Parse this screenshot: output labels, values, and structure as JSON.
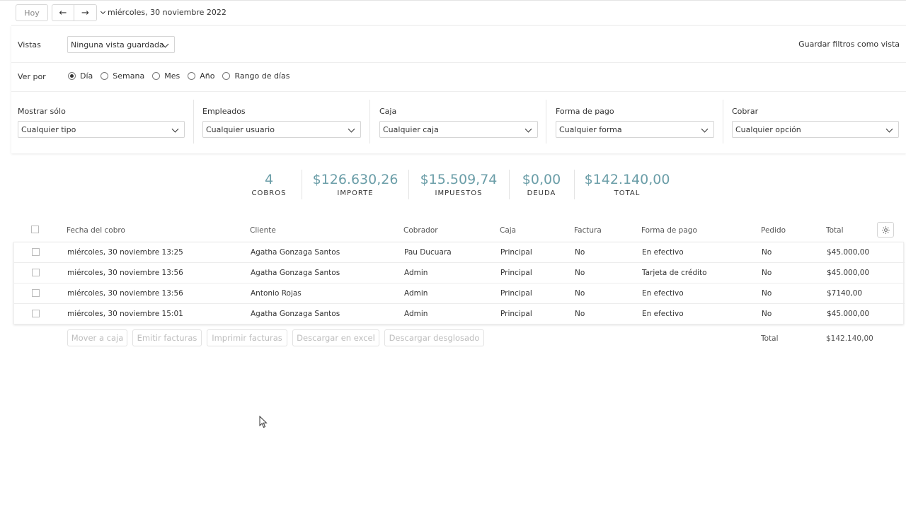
{
  "nav": {
    "today": "Hoy",
    "prev": "←",
    "next": "→",
    "date": "miércoles, 30 noviembre 2022"
  },
  "filters": {
    "views_label": "Vistas",
    "views_value": "Ninguna vista guardada",
    "save_view": "Guardar filtros como vista",
    "period_label": "Ver por",
    "period_options": [
      "Día",
      "Semana",
      "Mes",
      "Año",
      "Rango de días"
    ],
    "period_selected": "Día",
    "show_only": {
      "label": "Mostrar sólo",
      "value": "Cualquier tipo"
    },
    "employees": {
      "label": "Empleados",
      "value": "Cualquier usuario"
    },
    "box": {
      "label": "Caja",
      "value": "Cualquier caja"
    },
    "payment": {
      "label": "Forma de pago",
      "value": "Cualquier forma"
    },
    "charge": {
      "label": "Cobrar",
      "value": "Cualquier opción"
    }
  },
  "summary": [
    {
      "value": "4",
      "label": "COBROS"
    },
    {
      "value": "$126.630,26",
      "label": "IMPORTE"
    },
    {
      "value": "$15.509,74",
      "label": "IMPUESTOS"
    },
    {
      "value": "$0,00",
      "label": "DEUDA"
    },
    {
      "value": "$142.140,00",
      "label": "TOTAL"
    }
  ],
  "table": {
    "columns": [
      "Fecha del cobro",
      "Cliente",
      "Cobrador",
      "Caja",
      "Factura",
      "Forma de pago",
      "Pedido",
      "Total"
    ],
    "rows": [
      [
        "miércoles, 30 noviembre 13:25",
        "Agatha Gonzaga Santos",
        "Pau Ducuara",
        "Principal",
        "No",
        "En efectivo",
        "No",
        "$45.000,00"
      ],
      [
        "miércoles, 30 noviembre 13:56",
        "Agatha Gonzaga Santos",
        "Admin",
        "Principal",
        "No",
        "Tarjeta de crédito",
        "No",
        "$45.000,00"
      ],
      [
        "miércoles, 30 noviembre 13:56",
        "Antonio Rojas",
        "Admin",
        "Principal",
        "No",
        "En efectivo",
        "No",
        "$7140,00"
      ],
      [
        "miércoles, 30 noviembre 15:01",
        "Agatha Gonzaga Santos",
        "Admin",
        "Principal",
        "No",
        "En efectivo",
        "No",
        "$45.000,00"
      ]
    ]
  },
  "actions": [
    "Mover a caja",
    "Emitir facturas",
    "Imprimir facturas",
    "Descargar en excel",
    "Descargar desglosado"
  ],
  "footer": {
    "total_label": "Total",
    "total_value": "$142.140,00"
  },
  "icons": {
    "settings": "gear-icon",
    "dropdown": "chevron-down-icon"
  }
}
